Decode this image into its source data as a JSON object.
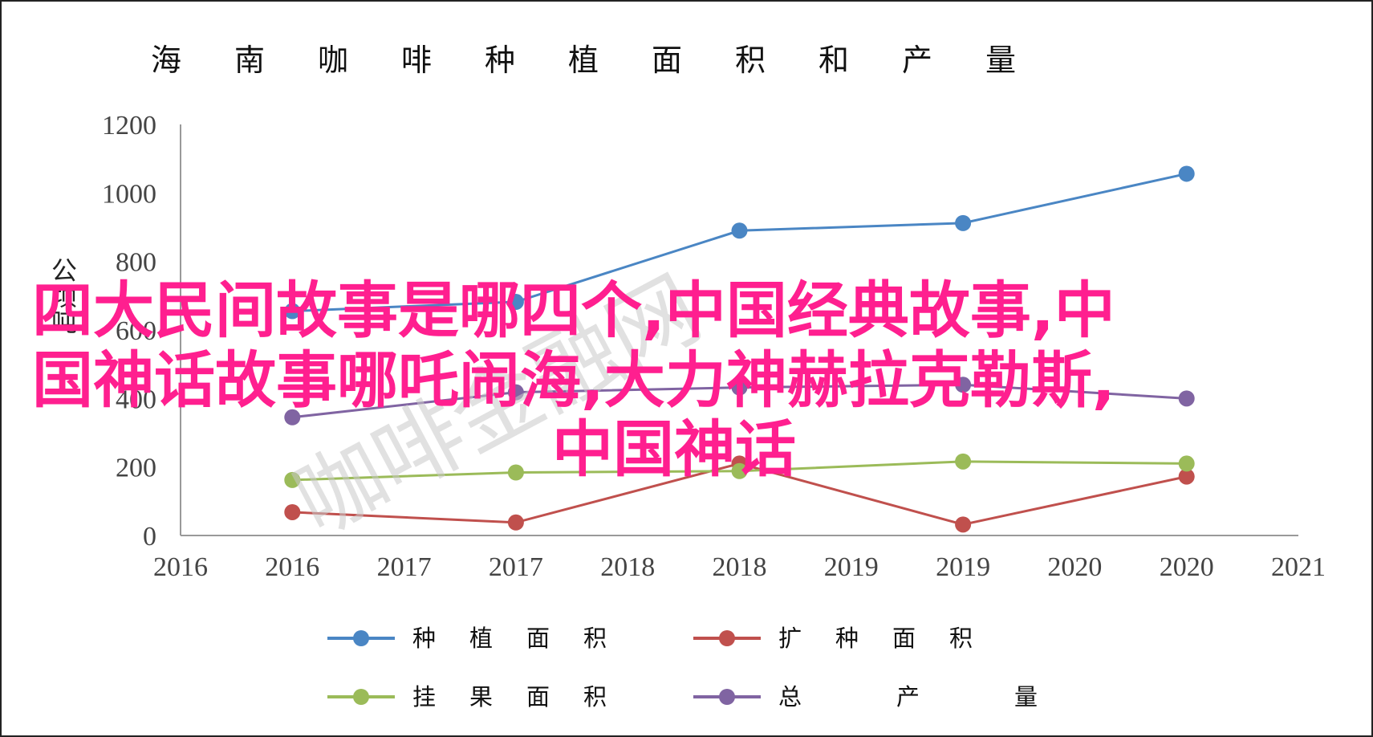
{
  "chart_data": {
    "type": "line",
    "title": "海南咖啡种植面积和产量",
    "ylabel": "公顷吨",
    "ylim": [
      0,
      1200
    ],
    "yticks": [
      "0",
      "200",
      "400",
      "600",
      "800",
      "1000",
      "1200"
    ],
    "xticks": [
      "2016",
      "2016",
      "2017",
      "2017",
      "2018",
      "2018",
      "2019",
      "2019",
      "2020",
      "2020",
      "2021"
    ],
    "x": [
      "2016",
      "2017",
      "2018",
      "2019",
      "2020"
    ],
    "legend_position": "bottom",
    "grid": false,
    "series": [
      {
        "name": "种植面积",
        "color": "#4a86c4",
        "values": [
          655,
          682,
          890,
          912,
          1056
        ]
      },
      {
        "name": "扩种面积",
        "color": "#c0504d",
        "values": [
          68,
          38,
          210,
          32,
          172
        ]
      },
      {
        "name": "挂果面积",
        "color": "#9bbb59",
        "values": [
          162,
          184,
          188,
          216,
          210
        ]
      },
      {
        "name": "总产量",
        "color": "#8064a2",
        "values": [
          345,
          418,
          432,
          440,
          400
        ]
      }
    ]
  },
  "overlay": {
    "lines": [
      "四大民间故事是哪四个,中国经典故事,中",
      "国神话故事哪吒闹海,大力神赫拉克勒斯,",
      "中国神话"
    ],
    "color": "#ff1f8f"
  },
  "watermark": {
    "text": "咖啡金融网"
  }
}
